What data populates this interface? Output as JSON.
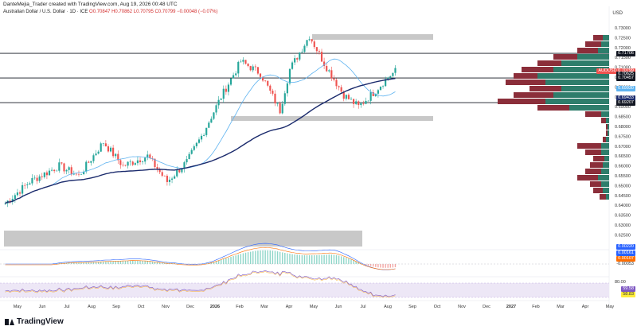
{
  "header": {
    "author_line": "DanteMejia_Trader created with TradingView.com, Aug 19, 2026 00:48 UTC",
    "symbol": "Australian Dollar / U.S. Dollar · 1D · ICE",
    "ohlc": "O0.70847 H0.70862 L0.70795 C0.70799 −0.00048 (−0.07%)",
    "currency": "USD"
  },
  "brand": "TradingView",
  "colors": {
    "up": "#26a69a",
    "down": "#ef5350",
    "ma_fast": "#5eb3f0",
    "ma_slow": "#1a2a6c",
    "vp_up": "#2e7d6b",
    "vp_down": "#8b2e3a",
    "zone": "#c8c8c8"
  },
  "price_axis": {
    "labels": [
      "0.73000",
      "0.72500",
      "0.72000",
      "0.71500",
      "0.71000",
      "0.70500",
      "0.70000",
      "0.69500",
      "0.69000",
      "0.68500",
      "0.68000",
      "0.67500",
      "0.67000",
      "0.66500",
      "0.66000",
      "0.65500",
      "0.65000",
      "0.64500",
      "0.64000",
      "0.63500",
      "0.63000",
      "0.62500"
    ],
    "tags": [
      {
        "text": "0.71706",
        "bg": "#131722",
        "fg": "#ffffff"
      },
      {
        "text": "AUDUSD  0.70799",
        "bg": "#ef5350",
        "fg": "#ffffff"
      },
      {
        "text": "0.70625",
        "bg": "#131722",
        "fg": "#ffffff"
      },
      {
        "text": "0.70457",
        "bg": "#131722",
        "fg": "#ffffff"
      },
      {
        "text": "0.69930",
        "bg": "#5eb3f0",
        "fg": "#ffffff"
      },
      {
        "text": "0.69433",
        "bg": "#1a2a6c",
        "fg": "#ffffff"
      },
      {
        "text": "0.69207",
        "bg": "#131722",
        "fg": "#ffffff"
      }
    ]
  },
  "macd_axis": {
    "tags": [
      {
        "text": "0.00220",
        "bg": "#2962ff",
        "fg": "#ffffff"
      },
      {
        "text": "0.00161",
        "bg": "#2962ff",
        "fg": "#ffffff"
      },
      {
        "text": "0.00107",
        "bg": "#ff6d00",
        "fg": "#ffffff"
      },
      {
        "text": "-0.00053",
        "bg": "#ffffff",
        "fg": "#333333"
      }
    ]
  },
  "rsi_axis": {
    "labels": [
      "80.00"
    ],
    "tags": [
      {
        "text": "59.58",
        "bg": "#7e57c2",
        "fg": "#ffffff"
      },
      {
        "text": "58.83",
        "bg": "#ffeb3b",
        "fg": "#333333"
      }
    ]
  },
  "time_axis": [
    "May",
    "Jun",
    "Jul",
    "Aug",
    "Sep",
    "Oct",
    "Nov",
    "Dec",
    "2026",
    "Feb",
    "Mar",
    "Apr",
    "May",
    "Jun",
    "Jul",
    "Aug",
    "Sep",
    "Oct",
    "Nov",
    "Dec",
    "2027",
    "Feb",
    "Mar",
    "Apr",
    "May"
  ]
}
